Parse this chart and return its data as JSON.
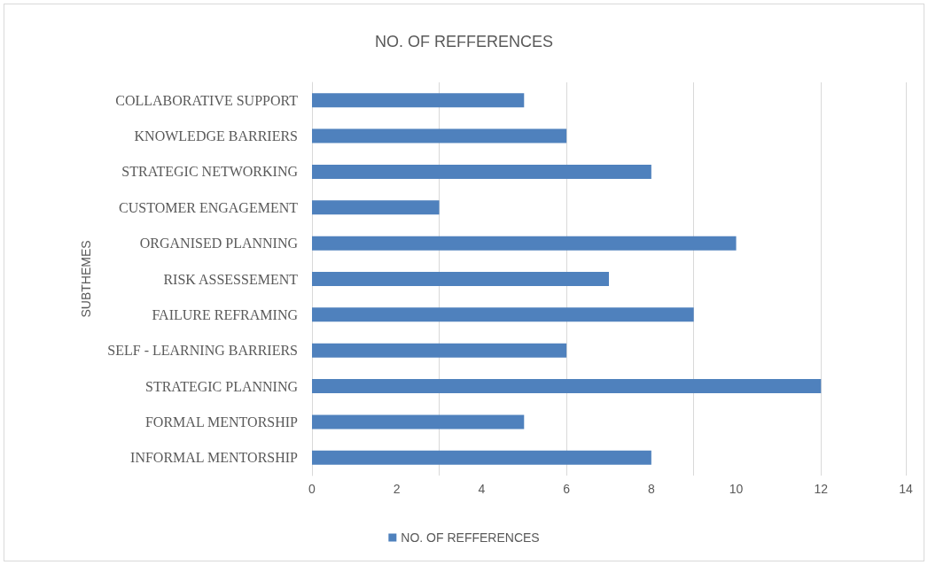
{
  "chart_data": {
    "type": "bar",
    "orientation": "horizontal",
    "title": "NO. OF REFFERENCES",
    "ylabel": "SUBTHEMES",
    "categories": [
      "COLLABORATIVE SUPPORT",
      "KNOWLEDGE BARRIERS",
      "STRATEGIC NETWORKING",
      "CUSTOMER ENGAGEMENT",
      "ORGANISED PLANNING",
      "RISK ASSESSEMENT",
      "FAILURE REFRAMING",
      "SELF - LEARNING BARRIERS",
      "STRATEGIC PLANNING",
      "FORMAL MENTORSHIP",
      "INFORMAL MENTORSHIP"
    ],
    "series": [
      {
        "name": "NO. OF REFFERENCES",
        "color": "#4f81bd",
        "values": [
          5,
          6,
          8,
          3,
          10,
          7,
          9,
          6,
          12,
          5,
          8
        ]
      }
    ],
    "xlim": [
      0,
      14
    ],
    "xticks": [
      0,
      2,
      4,
      6,
      8,
      10,
      12,
      14
    ],
    "grid": "x",
    "legend": "bottom"
  }
}
